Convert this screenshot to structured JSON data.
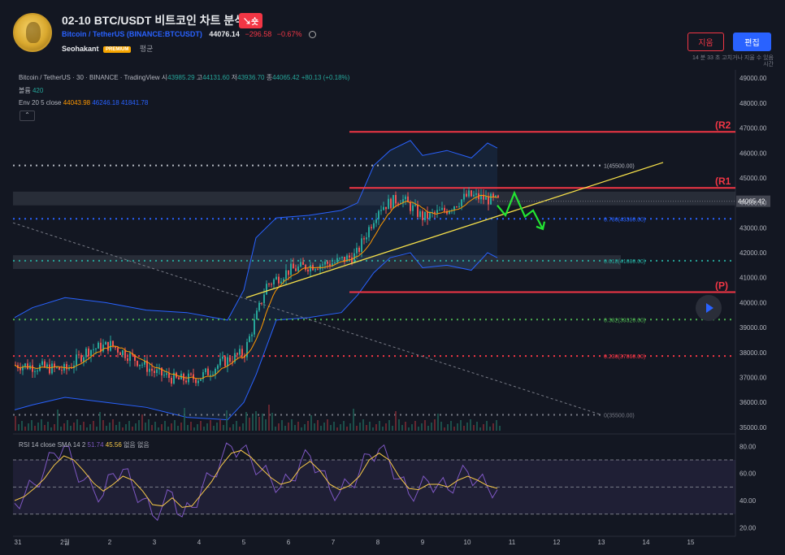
{
  "header": {
    "title": "02-10 BTC/USDT 비트코인 차트 분석",
    "badge": "↘숏",
    "symbol_name": "Bitcoin / TetherUS",
    "symbol_code": "BINANCE:BTCUSDT",
    "price": "44076.14",
    "change": "−296.58",
    "change_pct": "−0.67%",
    "author": "Seohakant",
    "premium": "PREMIUM",
    "status": "평균",
    "delete_label": "지움",
    "edit_label": "편집",
    "note": "14 분 33 초 고치거나 지울 수 있음 시간"
  },
  "legend": {
    "line1": "Bitcoin / TetherUS · 30 · BINANCE · TradingView",
    "o_label": "시",
    "o": "43985.29",
    "h_label": "고",
    "h": "44131.60",
    "l_label": "저",
    "l": "43936.70",
    "c_label": "종",
    "c": "44065.42",
    "chg": "+80.13 (+0.18%)",
    "vol_label": "볼륨",
    "vol": "420",
    "env_label": "Env 20 5 close",
    "env1": "44043.98",
    "env2": "46246.18",
    "env3": "41841.78",
    "collapse": "⌃"
  },
  "rsi": {
    "label": "RSI 14 close SMA 14 2",
    "v1": "51.74",
    "v2": "45.56",
    "na1": "없음",
    "na2": "없음"
  },
  "chart_data": {
    "type": "candlestick",
    "symbol": "BTCUSDT",
    "interval": "30",
    "x_ticks": [
      "31",
      "2월",
      "2",
      "3",
      "4",
      "5",
      "6",
      "7",
      "8",
      "9",
      "10",
      "11",
      "12",
      "13",
      "14",
      "15"
    ],
    "y_ticks": [
      "49000.00",
      "48000.00",
      "47000.00",
      "46000.00",
      "45000.00",
      "44000.00",
      "43000.00",
      "42000.00",
      "41000.00",
      "40000.00",
      "39000.00",
      "38000.00",
      "37000.00",
      "36000.00",
      "35000.00"
    ],
    "ylim": [
      34800,
      49300
    ],
    "last_price": "44065.42",
    "fib_levels": [
      {
        "label": "1(45500.00)",
        "value": 45500,
        "color": "#b2b5be"
      },
      {
        "label": "0.786(43360.00)",
        "value": 43360,
        "color": "#2962ff"
      },
      {
        "label": "0.618(41680.00)",
        "value": 41680,
        "color": "#26a69a"
      },
      {
        "label": "0.382(39320.00)",
        "value": 39320,
        "color": "#4caf50"
      },
      {
        "label": "0.236(37860.00)",
        "value": 37860,
        "color": "#f23645"
      },
      {
        "label": "0(35500.00)",
        "value": 35500,
        "color": "#787b86"
      }
    ],
    "resistance": [
      {
        "label": "(R2",
        "value": 46850
      },
      {
        "label": "(R1",
        "value": 44600
      },
      {
        "label": "(P)",
        "value": 40420
      }
    ],
    "close_path": [
      [
        "1/31",
        37500
      ],
      [
        "2/1",
        37300
      ],
      [
        "2/1",
        38100
      ],
      [
        "2/2",
        38300
      ],
      [
        "2/2",
        37800
      ],
      [
        "2/3",
        37200
      ],
      [
        "2/3",
        36900
      ],
      [
        "2/4",
        37000
      ],
      [
        "2/4",
        37600
      ],
      [
        "2/5",
        38000
      ],
      [
        "2/5",
        40700
      ],
      [
        "2/6",
        41300
      ],
      [
        "2/6",
        41500
      ],
      [
        "2/7",
        41600
      ],
      [
        "2/7",
        41900
      ],
      [
        "2/8",
        43800
      ],
      [
        "2/8",
        44200
      ],
      [
        "2/9",
        43400
      ],
      [
        "2/9",
        43700
      ],
      [
        "2/10",
        44300
      ],
      [
        "2/10",
        44065
      ]
    ],
    "rsi_ticks": [
      "80.00",
      "60.00",
      "40.00",
      "20.00"
    ],
    "rsi_ylim": [
      16,
      88
    ],
    "rsi_bands": [
      70,
      50,
      30
    ],
    "rsi_values": [
      38,
      44,
      52,
      62,
      75,
      80,
      66,
      55,
      48,
      44,
      60,
      63,
      50,
      41,
      29,
      36,
      46,
      28,
      35,
      49,
      58,
      71,
      80,
      78,
      70,
      62,
      56,
      50,
      55,
      68,
      73,
      62,
      48,
      46,
      52,
      61,
      74,
      78,
      70,
      56,
      45,
      48,
      54,
      52,
      48,
      57,
      61,
      55,
      50,
      48
    ],
    "rsi_ma": [
      40,
      43,
      49,
      56,
      66,
      73,
      70,
      62,
      53,
      47,
      52,
      58,
      55,
      47,
      37,
      36,
      42,
      35,
      36,
      45,
      54,
      66,
      75,
      77,
      72,
      64,
      57,
      52,
      54,
      64,
      69,
      62,
      52,
      48,
      51,
      58,
      70,
      75,
      70,
      58,
      49,
      48,
      52,
      52,
      50,
      55,
      58,
      55,
      51,
      49
    ]
  }
}
